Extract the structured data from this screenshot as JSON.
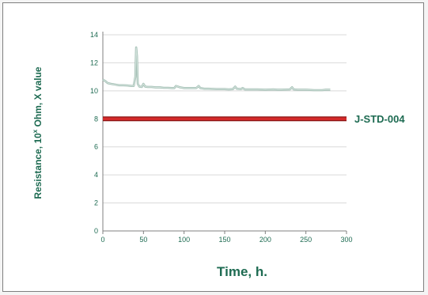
{
  "chart_data": {
    "type": "line",
    "xlabel": "Time, h.",
    "ylabel_parts": {
      "base": "Resistance, 10",
      "sup": "x",
      "rest": " Ohm, X value"
    },
    "xlim": [
      0,
      300
    ],
    "ylim": [
      0,
      14
    ],
    "x_ticks": [
      0,
      50,
      100,
      150,
      200,
      250,
      300
    ],
    "y_ticks": [
      0,
      2,
      4,
      6,
      8,
      10,
      12,
      14
    ],
    "grid": "horizontal",
    "colors": {
      "series": "#b8cfc6",
      "threshold": "#d42a2a",
      "text": "#1e6b52",
      "grid": "#d9d9d9",
      "axis": "#808080"
    },
    "series": [
      {
        "x": [
          0,
          3,
          6,
          10,
          15,
          20,
          25,
          30,
          35,
          38,
          40,
          41,
          42,
          43,
          45,
          48,
          50,
          52,
          55,
          60,
          65,
          70,
          75,
          80,
          85,
          88,
          90,
          95,
          100,
          105,
          110,
          115,
          118,
          120,
          125,
          130,
          140,
          150,
          155,
          160,
          163,
          165,
          170,
          172,
          175,
          180,
          190,
          200,
          210,
          215,
          220,
          230,
          233,
          235,
          240,
          250,
          260,
          270,
          275,
          280
        ],
        "y": [
          10.8,
          10.7,
          10.55,
          10.5,
          10.45,
          10.4,
          10.4,
          10.38,
          10.35,
          10.35,
          11.0,
          13.1,
          12.5,
          10.5,
          10.3,
          10.28,
          10.5,
          10.3,
          10.28,
          10.28,
          10.25,
          10.25,
          10.22,
          10.22,
          10.2,
          10.2,
          10.35,
          10.25,
          10.2,
          10.2,
          10.2,
          10.2,
          10.35,
          10.2,
          10.15,
          10.15,
          10.12,
          10.12,
          10.1,
          10.12,
          10.3,
          10.15,
          10.12,
          10.2,
          10.1,
          10.1,
          10.1,
          10.08,
          10.1,
          10.08,
          10.08,
          10.1,
          10.25,
          10.1,
          10.08,
          10.08,
          10.05,
          10.05,
          10.08,
          10.08
        ]
      }
    ],
    "threshold": {
      "label": "J-STD-004",
      "value": 8
    }
  }
}
